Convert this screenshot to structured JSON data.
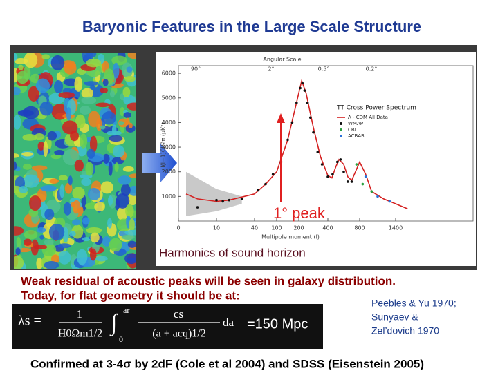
{
  "title": "Baryonic Features in the Large Scale Structure",
  "figure": {
    "annotation": "1° peak",
    "caption": "Harmonics of sound horizon",
    "chart_data": {
      "type": "line",
      "title": "TT Cross Power Spectrum",
      "top_axis_label": "Angular Scale",
      "top_ticks": [
        "90°",
        "2°",
        "0.5°",
        "0.2°"
      ],
      "xlabel": "Multipole moment (l)",
      "ylabel": "l(l+1)Cl/2π (μK²)",
      "xlim": [
        0,
        1600
      ],
      "ylim": [
        0,
        6200
      ],
      "xticks": [
        0,
        10,
        40,
        100,
        200,
        400,
        800,
        1400
      ],
      "yticks": [
        1000,
        2000,
        3000,
        4000,
        5000,
        6000
      ],
      "series": [
        {
          "name": "Λ - CDM All Data",
          "color": "#d42020",
          "marker": "line",
          "x": [
            2,
            5,
            10,
            20,
            40,
            70,
            100,
            150,
            200,
            220,
            250,
            300,
            350,
            400,
            450,
            500,
            540,
            600,
            650,
            700,
            800,
            900,
            1000,
            1100,
            1200,
            1400,
            1600
          ],
          "values": [
            1100,
            900,
            800,
            850,
            1100,
            1500,
            2000,
            3300,
            5200,
            5700,
            5200,
            3800,
            2600,
            1850,
            1750,
            2200,
            2500,
            2300,
            1800,
            1650,
            2400,
            1900,
            1200,
            1050,
            900,
            700,
            500
          ]
        },
        {
          "name": "WMAP",
          "color": "#111111",
          "marker": "point",
          "x": [
            5,
            10,
            15,
            20,
            30,
            50,
            70,
            90,
            120,
            150,
            170,
            190,
            210,
            225,
            240,
            260,
            280,
            300,
            330,
            360,
            400,
            460,
            520,
            560,
            600,
            650,
            700
          ],
          "values": [
            560,
            850,
            800,
            850,
            900,
            1250,
            1500,
            1900,
            2400,
            3300,
            4000,
            4800,
            5400,
            5600,
            5300,
            4800,
            4200,
            3600,
            2800,
            2300,
            1800,
            1900,
            2400,
            2500,
            2000,
            1600,
            1600
          ]
        },
        {
          "name": "CBI",
          "color": "#2aa040",
          "marker": "point",
          "x": [
            760,
            850,
            1000
          ],
          "values": [
            2300,
            1500,
            1200
          ]
        },
        {
          "name": "ACBAR",
          "color": "#2a70d8",
          "marker": "point",
          "x": [
            900,
            1100,
            1300
          ],
          "values": [
            1800,
            1000,
            800
          ]
        }
      ]
    }
  },
  "body": {
    "line1": "Weak residual of acoustic peaks will be seen in galaxy distribution.",
    "line2": "Today, for flat geometry it should be at:",
    "formula": {
      "lhs": "λs =",
      "num1": "1",
      "den1": "H0Ωm1/2",
      "integral": "∫",
      "upper": "ar",
      "lower": "0",
      "num2": "cs",
      "den2": "(a + acq)1/2",
      "dx": "da",
      "result": "=150 Mpc"
    },
    "references": [
      "Peebles & Yu 1970;",
      "Sunyaev &",
      "Zel’dovich 1970"
    ],
    "footer": "Confirmed at 3-4σ by 2dF (Cole et al 2004) and SDSS (Eisenstein 2005)"
  }
}
